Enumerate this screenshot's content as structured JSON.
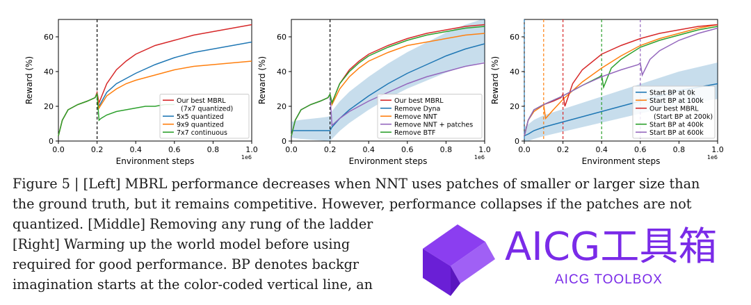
{
  "figure": {
    "caption_lines": [
      "Figure 5 | [Left] MBRL performance decreases when NNT uses patches of smaller or larger size than",
      "the ground truth, but it remains competitive. However, performance collapses if the patches are not",
      "quantized. [Middle] Removing any rung of the ladder",
      "[Right] Warming up the world model before using",
      "required for good performance. BP denotes backgr",
      "imagination starts at the color-coded vertical line, an"
    ]
  },
  "watermark": {
    "title": "AICG工具箱",
    "subtitle": "AICG TOOLBOX",
    "color": "#7a2be8"
  },
  "chart_data": [
    {
      "type": "line",
      "ylabel": "Reward (%)",
      "xlabel": "Environment steps",
      "x_exponent": "1e6",
      "xlim": [
        0,
        1.0
      ],
      "ylim": [
        0,
        70
      ],
      "xticks": [
        "0.0",
        "0.2",
        "0.4",
        "0.6",
        "0.8",
        "1.0"
      ],
      "yticks": [
        "0",
        "20",
        "40",
        "60"
      ],
      "vlines": [
        {
          "x": 0.2,
          "color": "#000000",
          "style": "dashed"
        }
      ],
      "legend_position": "lower-right",
      "series": [
        {
          "name": "Our best MBRL\n(7x7 quantized)",
          "color": "#d62728",
          "x": [
            0,
            0.02,
            0.05,
            0.1,
            0.15,
            0.19,
            0.2,
            0.21,
            0.25,
            0.3,
            0.35,
            0.4,
            0.5,
            0.6,
            0.7,
            0.8,
            0.9,
            1.0
          ],
          "y": [
            3,
            12,
            18,
            21,
            23,
            25,
            28,
            22,
            33,
            41,
            46,
            50,
            55,
            58,
            61,
            63,
            65,
            67
          ]
        },
        {
          "name": "5x5 quantized",
          "color": "#1f77b4",
          "x": [
            0,
            0.02,
            0.05,
            0.1,
            0.15,
            0.19,
            0.2,
            0.21,
            0.25,
            0.3,
            0.35,
            0.4,
            0.5,
            0.6,
            0.7,
            0.8,
            0.9,
            1.0
          ],
          "y": [
            3,
            12,
            18,
            21,
            23,
            25,
            27,
            20,
            28,
            33,
            36,
            39,
            44,
            48,
            51,
            53,
            55,
            57
          ]
        },
        {
          "name": "9x9 quantized",
          "color": "#ff7f0e",
          "x": [
            0,
            0.02,
            0.05,
            0.1,
            0.15,
            0.19,
            0.2,
            0.21,
            0.25,
            0.3,
            0.35,
            0.4,
            0.5,
            0.6,
            0.7,
            0.8,
            0.9,
            1.0
          ],
          "y": [
            3,
            12,
            18,
            21,
            23,
            25,
            27,
            19,
            26,
            30,
            33,
            35,
            38,
            41,
            43,
            44,
            45,
            46
          ]
        },
        {
          "name": "7x7 continuous",
          "color": "#2ca02c",
          "x": [
            0,
            0.02,
            0.05,
            0.1,
            0.15,
            0.19,
            0.2,
            0.21,
            0.22,
            0.25,
            0.3,
            0.35,
            0.4,
            0.45,
            0.5,
            0.55,
            0.6
          ],
          "y": [
            3,
            12,
            18,
            21,
            23,
            25,
            27,
            12,
            13,
            15,
            17,
            18,
            19,
            20,
            20,
            21,
            21
          ]
        }
      ]
    },
    {
      "type": "line",
      "ylabel": "Reward (%)",
      "xlabel": "Environment steps",
      "x_exponent": "1e6",
      "xlim": [
        0,
        1.0
      ],
      "ylim": [
        0,
        70
      ],
      "xticks": [
        "0.0",
        "0.2",
        "0.4",
        "0.6",
        "0.8",
        "1.0"
      ],
      "yticks": [
        "0",
        "20",
        "40",
        "60"
      ],
      "vlines": [
        {
          "x": 0.2,
          "color": "#000000",
          "style": "dashed"
        }
      ],
      "legend_position": "lower-right",
      "series": [
        {
          "name": "Our best MBRL",
          "color": "#d62728",
          "x": [
            0,
            0.02,
            0.05,
            0.1,
            0.15,
            0.19,
            0.2,
            0.21,
            0.25,
            0.3,
            0.35,
            0.4,
            0.5,
            0.6,
            0.7,
            0.8,
            0.9,
            1.0
          ],
          "y": [
            3,
            12,
            18,
            21,
            23,
            25,
            27,
            22,
            33,
            41,
            46,
            50,
            55,
            59,
            62,
            64,
            66,
            67
          ]
        },
        {
          "name": "Remove Dyna",
          "color": "#1f77b4",
          "x": [
            0,
            0.02,
            0.05,
            0.1,
            0.15,
            0.19,
            0.2,
            0.21,
            0.25,
            0.3,
            0.4,
            0.5,
            0.6,
            0.7,
            0.8,
            0.9,
            1.0
          ],
          "y": [
            6,
            6,
            6,
            6,
            6,
            6,
            6,
            8,
            13,
            18,
            26,
            33,
            39,
            44,
            49,
            53,
            56
          ]
        },
        {
          "name": "Remove NNT",
          "color": "#ff7f0e",
          "x": [
            0,
            0.02,
            0.05,
            0.1,
            0.15,
            0.19,
            0.2,
            0.21,
            0.25,
            0.3,
            0.35,
            0.4,
            0.5,
            0.6,
            0.7,
            0.8,
            0.9,
            1.0
          ],
          "y": [
            3,
            12,
            18,
            21,
            23,
            25,
            27,
            21,
            30,
            37,
            42,
            46,
            51,
            55,
            57,
            59,
            61,
            62
          ]
        },
        {
          "name": "Remove NNT + patches",
          "color": "#9467bd",
          "x": [
            0,
            0.02,
            0.05,
            0.1,
            0.15,
            0.19,
            0.2,
            0.21,
            0.25,
            0.3,
            0.4,
            0.5,
            0.6,
            0.7,
            0.8,
            0.9,
            1.0
          ],
          "y": [
            3,
            12,
            18,
            21,
            23,
            25,
            27,
            9,
            13,
            17,
            23,
            28,
            33,
            37,
            40,
            43,
            45
          ]
        },
        {
          "name": "Remove BTF",
          "color": "#2ca02c",
          "x": [
            0,
            0.02,
            0.05,
            0.1,
            0.15,
            0.19,
            0.2,
            0.21,
            0.25,
            0.3,
            0.35,
            0.4,
            0.5,
            0.6,
            0.7,
            0.8,
            0.9,
            1.0
          ],
          "y": [
            3,
            12,
            18,
            21,
            23,
            25,
            27,
            22,
            33,
            40,
            45,
            49,
            54,
            58,
            61,
            63,
            65,
            66
          ]
        }
      ]
    },
    {
      "type": "line",
      "ylabel": "Reward (%)",
      "xlabel": "Environment steps",
      "x_exponent": "1e6",
      "xlim": [
        0,
        1.0
      ],
      "ylim": [
        0,
        70
      ],
      "xticks": [
        "0.0",
        "0.2",
        "0.4",
        "0.6",
        "0.8",
        "1.0"
      ],
      "yticks": [
        "0",
        "20",
        "40",
        "60"
      ],
      "vlines": [
        {
          "x": 0.0,
          "color": "#1f77b4",
          "style": "dashed"
        },
        {
          "x": 0.1,
          "color": "#ff7f0e",
          "style": "dashed"
        },
        {
          "x": 0.2,
          "color": "#d62728",
          "style": "dashed"
        },
        {
          "x": 0.4,
          "color": "#2ca02c",
          "style": "dashed"
        },
        {
          "x": 0.6,
          "color": "#9467bd",
          "style": "dashed"
        }
      ],
      "legend_position": "lower-right",
      "series": [
        {
          "name": "Start BP at 0k",
          "color": "#1f77b4",
          "x": [
            0,
            0.02,
            0.05,
            0.1,
            0.2,
            0.3,
            0.4,
            0.5,
            0.6,
            0.7,
            0.8,
            0.9,
            1.0
          ],
          "y": [
            3,
            4,
            6,
            8,
            11,
            14,
            17,
            20,
            23,
            26,
            29,
            31,
            33
          ]
        },
        {
          "name": "Start BP at 100k",
          "color": "#ff7f0e",
          "x": [
            0,
            0.02,
            0.05,
            0.09,
            0.1,
            0.11,
            0.15,
            0.2,
            0.3,
            0.4,
            0.5,
            0.6,
            0.7,
            0.8,
            0.9,
            1.0
          ],
          "y": [
            3,
            12,
            17,
            20,
            21,
            13,
            18,
            24,
            34,
            42,
            49,
            55,
            59,
            62,
            65,
            67
          ]
        },
        {
          "name": "Our best MBRL\n(Start BP at 200k)",
          "color": "#d62728",
          "x": [
            0,
            0.02,
            0.05,
            0.1,
            0.15,
            0.19,
            0.2,
            0.21,
            0.25,
            0.3,
            0.4,
            0.5,
            0.6,
            0.7,
            0.8,
            0.9,
            1.0
          ],
          "y": [
            3,
            12,
            18,
            21,
            23,
            25,
            27,
            20,
            33,
            41,
            50,
            55,
            59,
            62,
            64,
            66,
            67
          ]
        },
        {
          "name": "Start BP at 400k",
          "color": "#2ca02c",
          "x": [
            0,
            0.02,
            0.05,
            0.1,
            0.2,
            0.3,
            0.39,
            0.4,
            0.41,
            0.45,
            0.5,
            0.6,
            0.7,
            0.8,
            0.9,
            1.0
          ],
          "y": [
            3,
            12,
            18,
            21,
            26,
            32,
            37,
            38,
            31,
            42,
            47,
            54,
            58,
            61,
            64,
            66
          ]
        },
        {
          "name": "Start BP at 600k",
          "color": "#9467bd",
          "x": [
            0,
            0.02,
            0.05,
            0.1,
            0.2,
            0.3,
            0.4,
            0.5,
            0.59,
            0.6,
            0.61,
            0.65,
            0.7,
            0.8,
            0.9,
            1.0
          ],
          "y": [
            3,
            12,
            18,
            21,
            26,
            32,
            37,
            41,
            44,
            45,
            38,
            47,
            52,
            58,
            62,
            65
          ]
        }
      ]
    }
  ]
}
